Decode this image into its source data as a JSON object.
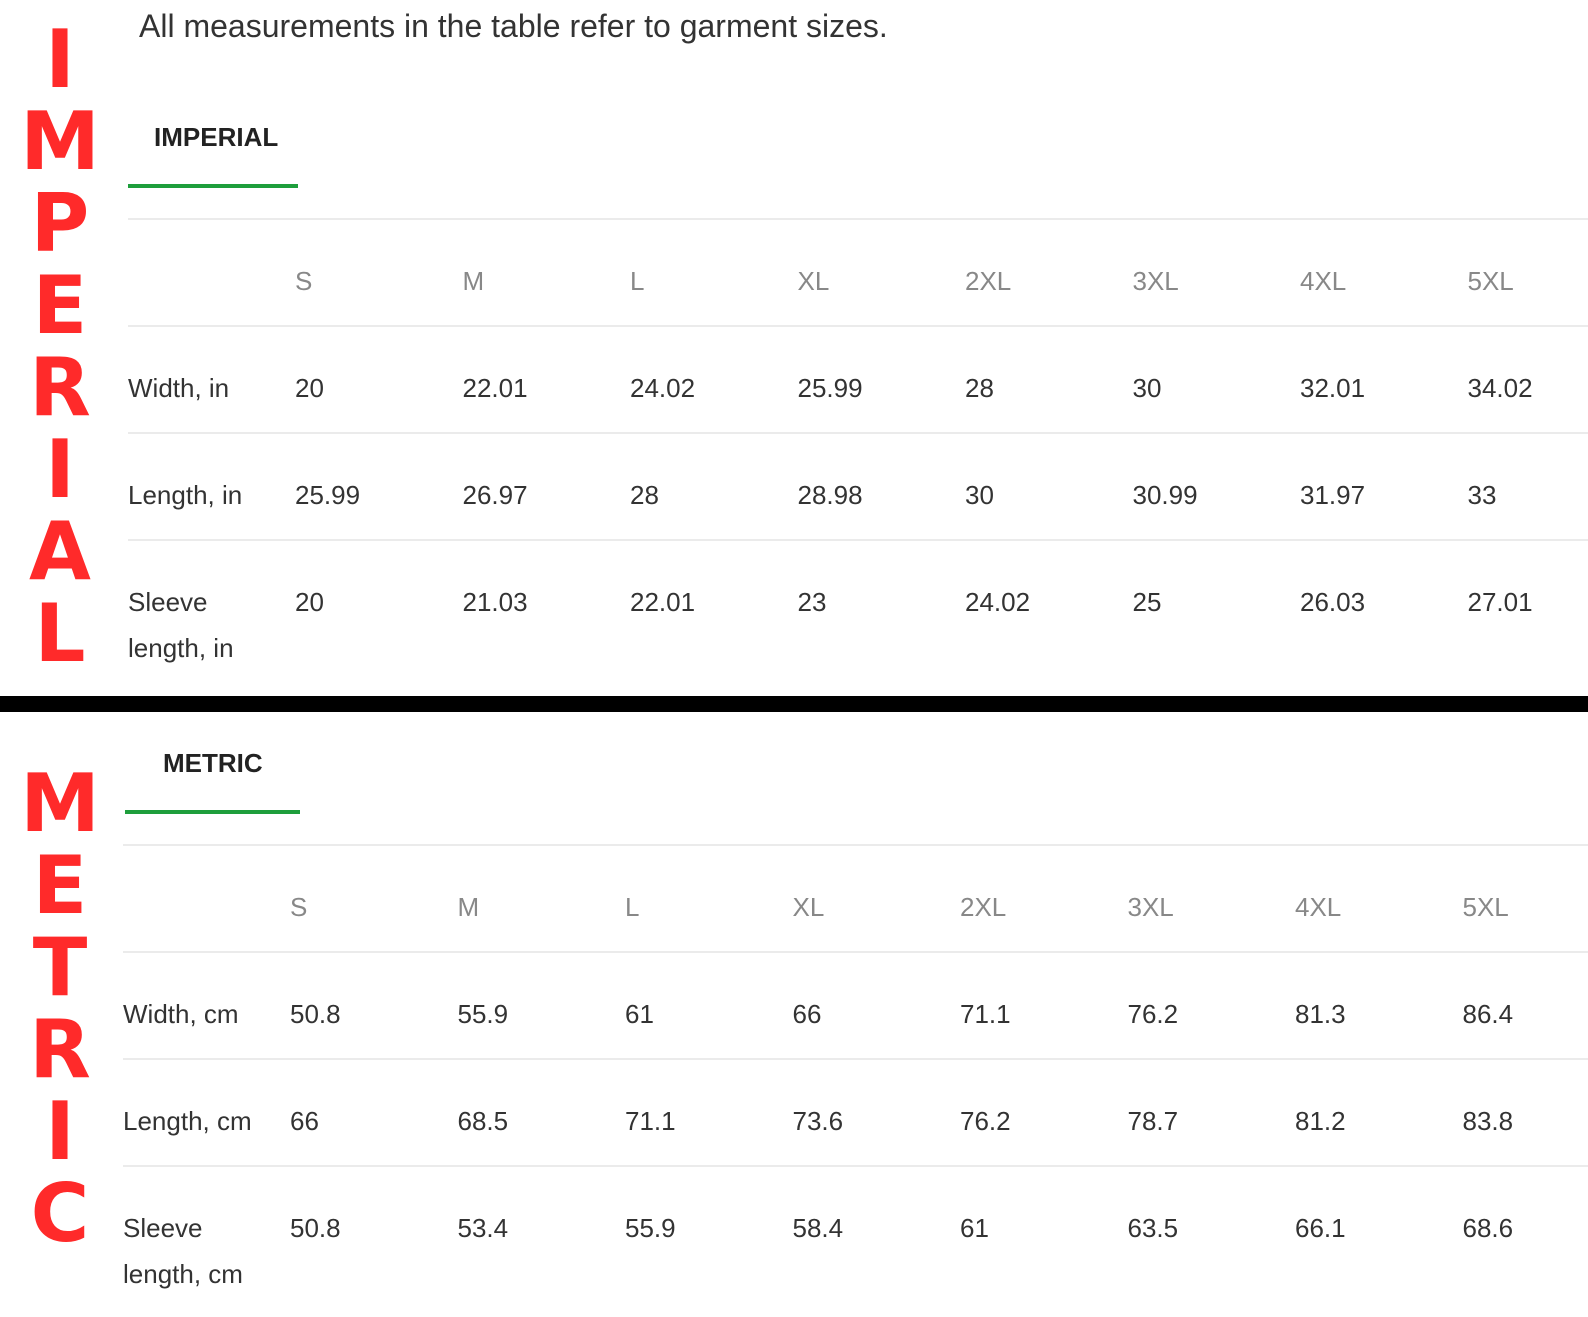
{
  "caption": "All measurements in the table refer to garment sizes.",
  "side_labels": {
    "imperial": [
      "I",
      "M",
      "P",
      "E",
      "R",
      "I",
      "A",
      "L"
    ],
    "metric": [
      "M",
      "E",
      "T",
      "R",
      "I",
      "C"
    ]
  },
  "colors": {
    "side_label": "#ff2a2a",
    "tab_underline": "#1e9e3c",
    "divider": "#000000"
  },
  "sizes": [
    "S",
    "M",
    "L",
    "XL",
    "2XL",
    "3XL",
    "4XL",
    "5XL"
  ],
  "imperial": {
    "tab_label": "IMPERIAL",
    "rows": [
      {
        "label": "Width, in",
        "values": [
          "20",
          "22.01",
          "24.02",
          "25.99",
          "28",
          "30",
          "32.01",
          "34.02"
        ]
      },
      {
        "label": "Length, in",
        "values": [
          "25.99",
          "26.97",
          "28",
          "28.98",
          "30",
          "30.99",
          "31.97",
          "33"
        ]
      },
      {
        "label": "Sleeve length, in",
        "values": [
          "20",
          "21.03",
          "22.01",
          "23",
          "24.02",
          "25",
          "26.03",
          "27.01"
        ]
      }
    ]
  },
  "metric": {
    "tab_label": "METRIC",
    "rows": [
      {
        "label": "Width, cm",
        "values": [
          "50.8",
          "55.9",
          "61",
          "66",
          "71.1",
          "76.2",
          "81.3",
          "86.4"
        ]
      },
      {
        "label": "Length, cm",
        "values": [
          "66",
          "68.5",
          "71.1",
          "73.6",
          "76.2",
          "78.7",
          "81.2",
          "83.8"
        ]
      },
      {
        "label": "Sleeve length, cm",
        "values": [
          "50.8",
          "53.4",
          "55.9",
          "58.4",
          "61",
          "63.5",
          "66.1",
          "68.6"
        ]
      }
    ]
  }
}
